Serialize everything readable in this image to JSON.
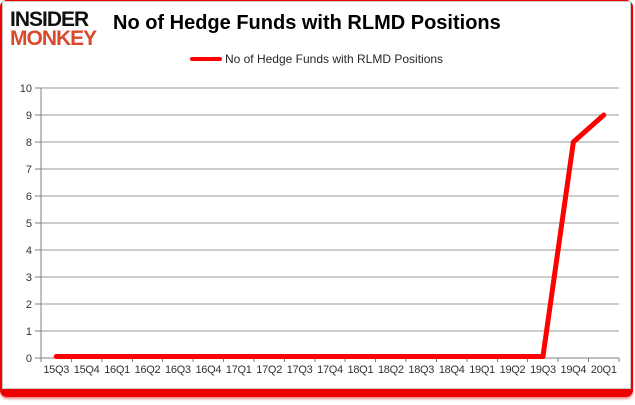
{
  "brand": {
    "line1": "INSIDER",
    "line2": "MONKEY"
  },
  "header": {
    "title": "No of Hedge Funds with RLMD Positions"
  },
  "legend": {
    "label": "No of Hedge Funds with RLMD Positions"
  },
  "chart_data": {
    "type": "line",
    "title": "No of Hedge Funds with RLMD Positions",
    "categories": [
      "15Q3",
      "15Q4",
      "16Q1",
      "16Q2",
      "16Q3",
      "16Q4",
      "17Q1",
      "17Q2",
      "17Q3",
      "17Q4",
      "18Q1",
      "18Q2",
      "18Q3",
      "18Q4",
      "19Q1",
      "19Q2",
      "19Q3",
      "19Q4",
      "20Q1"
    ],
    "series": [
      {
        "name": "No of Hedge Funds with RLMD Positions",
        "color": "#ff0000",
        "values": [
          0,
          0,
          0,
          0,
          0,
          0,
          0,
          0,
          0,
          0,
          0,
          0,
          0,
          0,
          0,
          0,
          0,
          8,
          9
        ]
      }
    ],
    "xlabel": "",
    "ylabel": "",
    "ylim": [
      0,
      10
    ],
    "ytick_step": 1,
    "grid": true,
    "legend_position": "top-center"
  },
  "colors": {
    "series_red": "#ff0000",
    "backdrop_red": "#ee0000",
    "brand_black": "#111111",
    "brand_orange": "#d94a2b",
    "grid_gray": "#9a9a9a",
    "axis_gray": "#7f7f7f",
    "tick_label": "#333333",
    "card_border": "#c9c9c9"
  }
}
